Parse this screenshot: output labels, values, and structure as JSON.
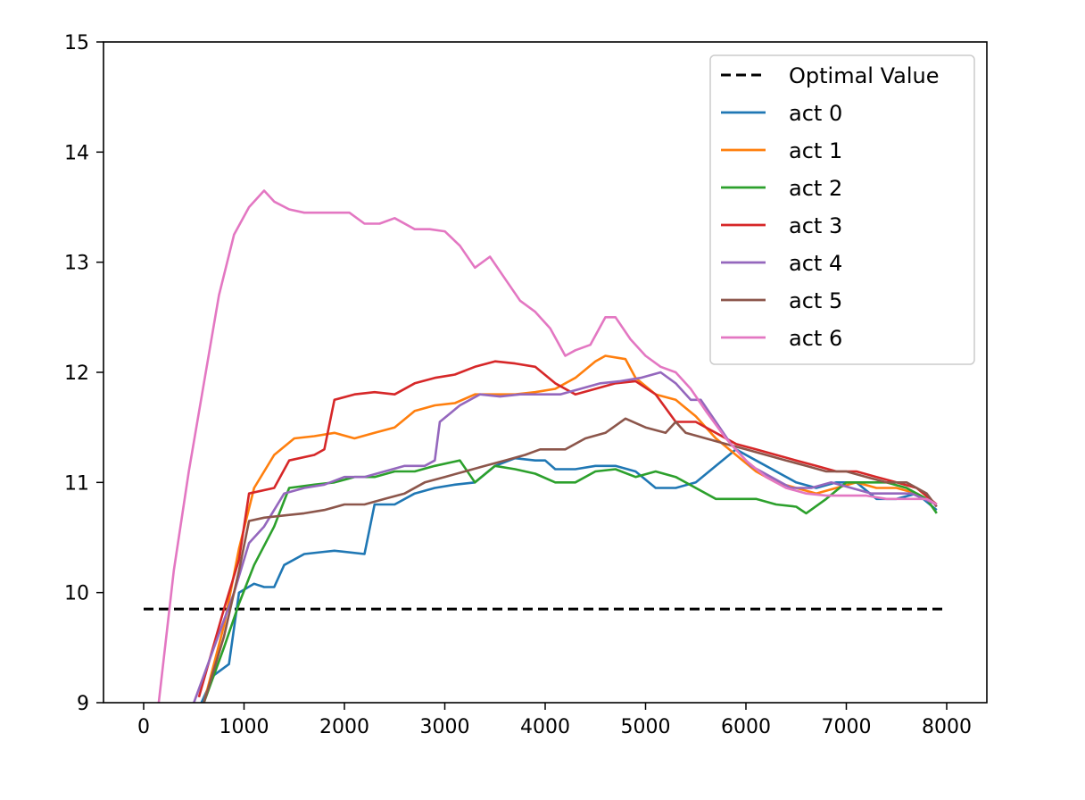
{
  "chart_data": {
    "type": "line",
    "xlim": [
      -400,
      8400
    ],
    "ylim": [
      9,
      15
    ],
    "x_ticks": [
      0,
      1000,
      2000,
      3000,
      4000,
      5000,
      6000,
      7000,
      8000
    ],
    "y_ticks": [
      9,
      10,
      11,
      12,
      13,
      14,
      15
    ],
    "grid": false,
    "legend_placement": "top-right",
    "reference_line": {
      "name": "Optimal Value",
      "y": 9.85,
      "x_range": [
        0,
        8000
      ],
      "color": "#000000",
      "style": "dashed"
    },
    "series": [
      {
        "name": "act 0",
        "color": "#1f77b4",
        "x": [
          550,
          700,
          850,
          950,
          1100,
          1200,
          1300,
          1400,
          1600,
          1800,
          1900,
          2200,
          2300,
          2500,
          2700,
          2900,
          3100,
          3300,
          3500,
          3700,
          3900,
          4000,
          4100,
          4300,
          4500,
          4700,
          4900,
          5100,
          5300,
          5500,
          5700,
          5900,
          6100,
          6300,
          6500,
          6700,
          6900,
          7100,
          7300,
          7500,
          7700,
          7900
        ],
        "y": [
          8.95,
          9.25,
          9.35,
          10.0,
          10.08,
          10.05,
          10.05,
          10.25,
          10.35,
          10.37,
          10.38,
          10.35,
          10.8,
          10.8,
          10.9,
          10.95,
          10.98,
          11.0,
          11.15,
          11.22,
          11.2,
          11.2,
          11.12,
          11.12,
          11.15,
          11.15,
          11.1,
          10.95,
          10.95,
          11.0,
          11.15,
          11.3,
          11.2,
          11.1,
          11.0,
          10.95,
          11.0,
          11.0,
          10.85,
          10.85,
          10.9,
          10.75
        ]
      },
      {
        "name": "act 1",
        "color": "#ff7f0e",
        "x": [
          600,
          800,
          950,
          1100,
          1300,
          1500,
          1700,
          1900,
          2100,
          2300,
          2500,
          2700,
          2900,
          3100,
          3300,
          3500,
          3700,
          3900,
          4100,
          4300,
          4500,
          4600,
          4800,
          4900,
          5100,
          5300,
          5500,
          5700,
          5900,
          6100,
          6300,
          6500,
          6700,
          6900,
          7100,
          7300,
          7500,
          7700,
          7900
        ],
        "y": [
          9.0,
          9.7,
          10.4,
          10.95,
          11.25,
          11.4,
          11.42,
          11.45,
          11.4,
          11.45,
          11.5,
          11.65,
          11.7,
          11.72,
          11.8,
          11.8,
          11.8,
          11.82,
          11.85,
          11.95,
          12.1,
          12.15,
          12.12,
          11.95,
          11.8,
          11.75,
          11.6,
          11.4,
          11.25,
          11.1,
          11.0,
          10.95,
          10.9,
          10.95,
          11.0,
          10.95,
          10.95,
          10.9,
          10.8
        ]
      },
      {
        "name": "act 2",
        "color": "#2ca02c",
        "x": [
          600,
          800,
          950,
          1100,
          1300,
          1450,
          1700,
          1900,
          2100,
          2300,
          2500,
          2700,
          2900,
          3150,
          3300,
          3500,
          3700,
          3900,
          4100,
          4300,
          4500,
          4700,
          4900,
          5100,
          5300,
          5500,
          5700,
          5900,
          6100,
          6300,
          6500,
          6600,
          6800,
          7000,
          7200,
          7400,
          7600,
          7800,
          7900
        ],
        "y": [
          9.0,
          9.5,
          9.9,
          10.25,
          10.6,
          10.95,
          10.98,
          11.0,
          11.05,
          11.05,
          11.1,
          11.1,
          11.15,
          11.2,
          11.0,
          11.15,
          11.12,
          11.08,
          11.0,
          11.0,
          11.1,
          11.12,
          11.05,
          11.1,
          11.05,
          10.95,
          10.85,
          10.85,
          10.85,
          10.8,
          10.78,
          10.72,
          10.85,
          11.0,
          11.0,
          11.0,
          10.95,
          10.85,
          10.72
        ]
      },
      {
        "name": "act 3",
        "color": "#d62728",
        "x": [
          550,
          800,
          950,
          1050,
          1300,
          1450,
          1700,
          1800,
          1900,
          2100,
          2300,
          2500,
          2700,
          2900,
          3100,
          3300,
          3500,
          3700,
          3900,
          4100,
          4300,
          4500,
          4700,
          4900,
          5100,
          5300,
          5500,
          5700,
          5900,
          6100,
          6300,
          6500,
          6700,
          6900,
          7100,
          7300,
          7500,
          7700,
          7900
        ],
        "y": [
          9.05,
          9.85,
          10.3,
          10.9,
          10.95,
          11.2,
          11.25,
          11.3,
          11.75,
          11.8,
          11.82,
          11.8,
          11.9,
          11.95,
          11.98,
          12.05,
          12.1,
          12.08,
          12.05,
          11.9,
          11.8,
          11.85,
          11.9,
          11.92,
          11.8,
          11.55,
          11.55,
          11.45,
          11.35,
          11.3,
          11.25,
          11.2,
          11.15,
          11.1,
          11.1,
          11.05,
          11.0,
          10.95,
          10.8
        ]
      },
      {
        "name": "act 4",
        "color": "#9467bd",
        "x": [
          500,
          700,
          900,
          1050,
          1200,
          1400,
          1600,
          1800,
          2000,
          2200,
          2400,
          2600,
          2800,
          2900,
          2950,
          3150,
          3350,
          3550,
          3750,
          3950,
          4150,
          4350,
          4550,
          4750,
          4950,
          5150,
          5300,
          5450,
          5550,
          5700,
          5850,
          6050,
          6250,
          6450,
          6650,
          6850,
          7050,
          7250,
          7450,
          7650,
          7900
        ],
        "y": [
          9.0,
          9.5,
          10.0,
          10.45,
          10.6,
          10.9,
          10.95,
          10.98,
          11.05,
          11.05,
          11.1,
          11.15,
          11.15,
          11.2,
          11.55,
          11.7,
          11.8,
          11.78,
          11.8,
          11.8,
          11.8,
          11.85,
          11.9,
          11.92,
          11.95,
          12.0,
          11.9,
          11.75,
          11.75,
          11.55,
          11.35,
          11.15,
          11.05,
          10.95,
          10.95,
          11.0,
          10.95,
          10.9,
          10.9,
          10.9,
          10.8
        ]
      },
      {
        "name": "act 5",
        "color": "#8c564b",
        "x": [
          600,
          800,
          950,
          1050,
          1200,
          1400,
          1600,
          1800,
          2000,
          2200,
          2400,
          2600,
          2800,
          3000,
          3200,
          3400,
          3600,
          3800,
          3950,
          4200,
          4400,
          4600,
          4800,
          5000,
          5200,
          5300,
          5400,
          5600,
          5800,
          6000,
          6200,
          6400,
          6600,
          6800,
          7000,
          7200,
          7400,
          7600,
          7800,
          7900
        ],
        "y": [
          9.0,
          9.6,
          10.2,
          10.65,
          10.68,
          10.7,
          10.72,
          10.75,
          10.8,
          10.8,
          10.85,
          10.9,
          11.0,
          11.05,
          11.1,
          11.15,
          11.2,
          11.25,
          11.3,
          11.3,
          11.4,
          11.45,
          11.58,
          11.5,
          11.45,
          11.55,
          11.45,
          11.4,
          11.35,
          11.3,
          11.25,
          11.2,
          11.15,
          11.1,
          11.1,
          11.05,
          11.0,
          11.0,
          10.9,
          10.78
        ]
      },
      {
        "name": "act 6",
        "color": "#e377c2",
        "x": [
          150,
          300,
          450,
          600,
          750,
          900,
          1050,
          1200,
          1300,
          1450,
          1600,
          1750,
          1900,
          2050,
          2200,
          2350,
          2500,
          2700,
          2850,
          3000,
          3150,
          3300,
          3450,
          3600,
          3750,
          3900,
          4050,
          4200,
          4300,
          4450,
          4600,
          4700,
          4850,
          5000,
          5150,
          5300,
          5450,
          5600,
          5800,
          6000,
          6200,
          6400,
          6600,
          6800,
          7000,
          7200,
          7400,
          7600,
          7800,
          7900
        ],
        "y": [
          9.0,
          10.2,
          11.1,
          11.9,
          12.7,
          13.25,
          13.5,
          13.65,
          13.55,
          13.48,
          13.45,
          13.45,
          13.45,
          13.45,
          13.35,
          13.35,
          13.4,
          13.3,
          13.3,
          13.28,
          13.15,
          12.95,
          13.05,
          12.85,
          12.65,
          12.55,
          12.4,
          12.15,
          12.2,
          12.25,
          12.5,
          12.5,
          12.3,
          12.15,
          12.05,
          12.0,
          11.85,
          11.65,
          11.4,
          11.2,
          11.05,
          10.95,
          10.9,
          10.88,
          10.88,
          10.88,
          10.85,
          10.85,
          10.85,
          10.8
        ]
      }
    ]
  }
}
